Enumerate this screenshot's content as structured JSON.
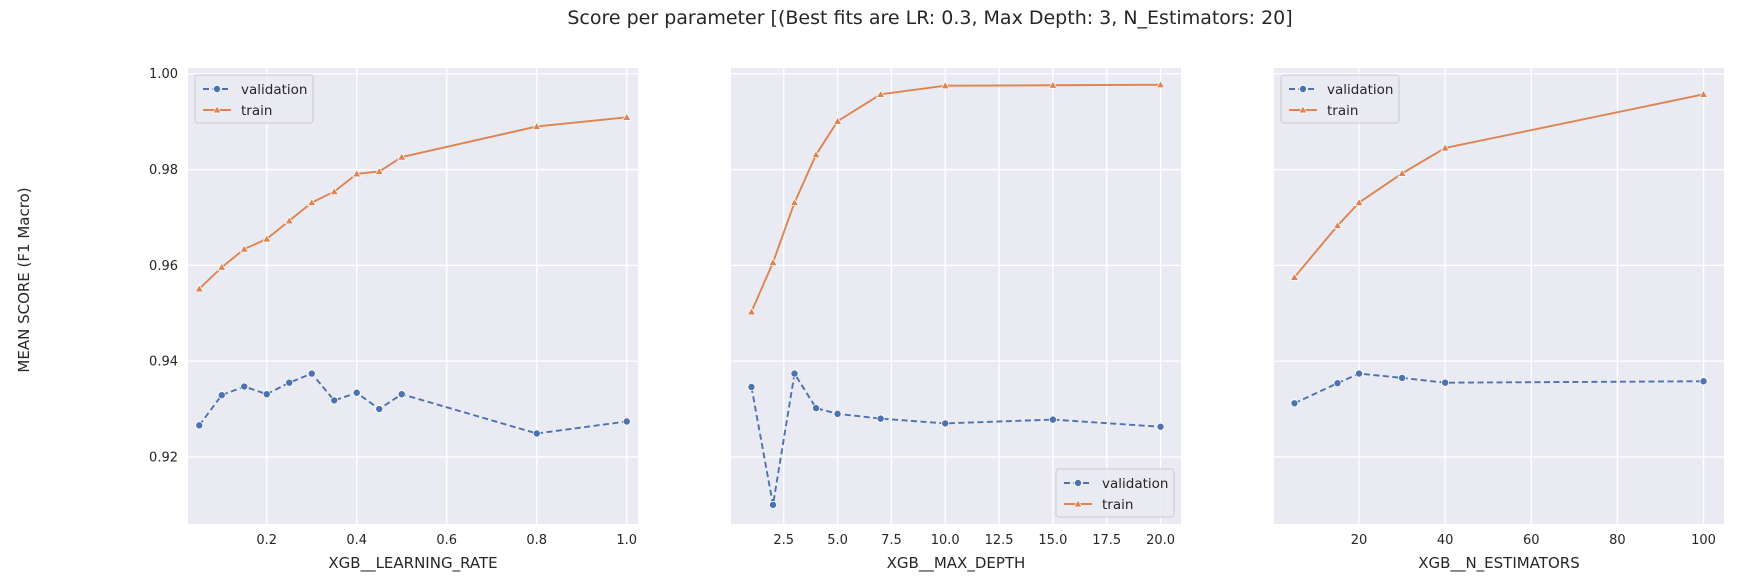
{
  "figure": {
    "title": "Score per parameter [(Best fits are LR: 0.3, Max Depth: 3, N_Estimators: 20]",
    "ylabel": "MEAN SCORE (F1 Macro)",
    "background": "#ffffff",
    "plot_background": "#eaeaf2",
    "grid_color": "#ffffff",
    "colors": {
      "validation": "#4c72b0",
      "train": "#dd8452"
    }
  },
  "chart_data": [
    {
      "type": "line",
      "xlabel": "XGB__LEARNING_RATE",
      "xlim": [
        0.025,
        1.025
      ],
      "ylim": [
        0.906,
        1.0012
      ],
      "xticks": [
        0.2,
        0.4,
        0.6,
        0.8,
        1.0
      ],
      "xtick_labels": [
        "0.2",
        "0.4",
        "0.6",
        "0.8",
        "1.0"
      ],
      "yticks": [
        0.92,
        0.94,
        0.96,
        0.98,
        1.0
      ],
      "ytick_labels": [
        "0.92",
        "0.94",
        "0.96",
        "0.98",
        "1.00"
      ],
      "grid": true,
      "legend_position": "upper left",
      "x": [
        0.05,
        0.1,
        0.15,
        0.2,
        0.25,
        0.3,
        0.35,
        0.4,
        0.45,
        0.5,
        0.8,
        1.0
      ],
      "series": [
        {
          "name": "validation",
          "style": "dashed",
          "marker": "circle",
          "values": [
            0.9266,
            0.9329,
            0.9347,
            0.9331,
            0.9355,
            0.9374,
            0.9318,
            0.9334,
            0.93,
            0.9331,
            0.9249,
            0.9274
          ]
        },
        {
          "name": "train",
          "style": "solid",
          "marker": "triangle",
          "values": [
            0.9551,
            0.9596,
            0.9634,
            0.9655,
            0.9693,
            0.9731,
            0.9754,
            0.9791,
            0.9796,
            0.9826,
            0.989,
            0.9909
          ]
        }
      ]
    },
    {
      "type": "line",
      "xlabel": "XGB__MAX_DEPTH",
      "xlim": [
        0.05,
        20.95
      ],
      "ylim": [
        0.906,
        1.0012
      ],
      "xticks": [
        2.5,
        5.0,
        7.5,
        10.0,
        12.5,
        15.0,
        17.5,
        20.0
      ],
      "xtick_labels": [
        "2.5",
        "5.0",
        "7.5",
        "10.0",
        "12.5",
        "15.0",
        "17.5",
        "20.0"
      ],
      "yticks": [
        0.92,
        0.94,
        0.96,
        0.98,
        1.0
      ],
      "ytick_labels": [
        "",
        "",
        "",
        "",
        ""
      ],
      "grid": true,
      "legend_position": "lower right",
      "x": [
        1,
        2,
        3,
        4,
        5,
        7,
        10,
        15,
        20
      ],
      "series": [
        {
          "name": "validation",
          "style": "dashed",
          "marker": "circle",
          "values": [
            0.9346,
            0.91,
            0.9374,
            0.9302,
            0.929,
            0.928,
            0.927,
            0.9278,
            0.9263
          ]
        },
        {
          "name": "train",
          "style": "solid",
          "marker": "triangle",
          "values": [
            0.9503,
            0.9606,
            0.9731,
            0.9831,
            0.9901,
            0.9957,
            0.9975,
            0.9976,
            0.9977
          ]
        }
      ]
    },
    {
      "type": "line",
      "xlabel": "XGB__N_ESTIMATORS",
      "xlim": [
        0.25,
        104.75
      ],
      "ylim": [
        0.906,
        1.0012
      ],
      "xticks": [
        20,
        40,
        60,
        80,
        100
      ],
      "xtick_labels": [
        "20",
        "40",
        "60",
        "80",
        "100"
      ],
      "yticks": [
        0.92,
        0.94,
        0.96,
        0.98,
        1.0
      ],
      "ytick_labels": [
        "",
        "",
        "",
        "",
        ""
      ],
      "grid": true,
      "legend_position": "upper left",
      "x": [
        5,
        15,
        20,
        30,
        40,
        100
      ],
      "series": [
        {
          "name": "validation",
          "style": "dashed",
          "marker": "circle",
          "values": [
            0.9312,
            0.9354,
            0.9374,
            0.9365,
            0.9355,
            0.9358
          ]
        },
        {
          "name": "train",
          "style": "solid",
          "marker": "triangle",
          "values": [
            0.9575,
            0.9683,
            0.9731,
            0.9792,
            0.9845,
            0.9957
          ]
        }
      ]
    }
  ]
}
